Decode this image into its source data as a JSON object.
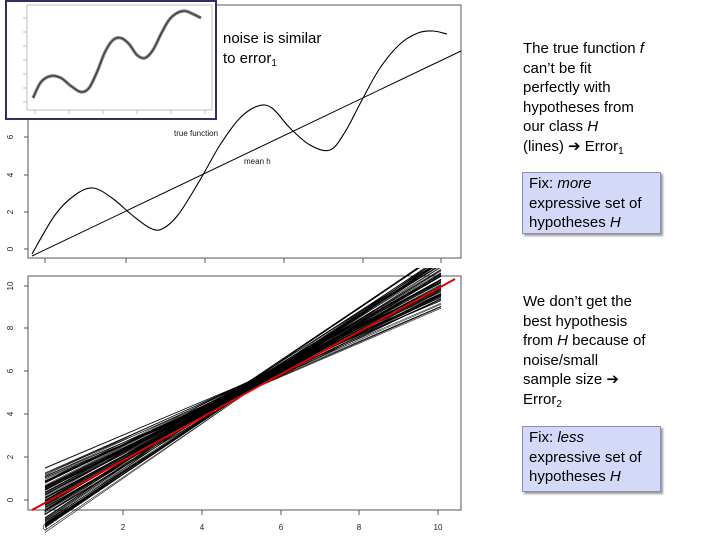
{
  "top_panel": {
    "noise_note_line1": "noise is similar",
    "noise_note_line2": "to error",
    "noise_note_sub": "1",
    "label_true_function": "true function",
    "label_mean_h": "mean h",
    "y_ticks": [
      "0",
      "2",
      "4",
      "6"
    ]
  },
  "bottom_panel": {
    "x_ticks": [
      "0",
      "2",
      "4",
      "6",
      "8",
      "10"
    ],
    "y_ticks": [
      "0",
      "2",
      "4",
      "6",
      "8",
      "10"
    ]
  },
  "right_text": {
    "para1_line1": "The true function ",
    "para1_italic_f": "f",
    "para1_line2": "can’t be fit",
    "para1_line3": "perfectly with",
    "para1_line4": "hypotheses from",
    "para1_line5": "our class ",
    "para1_italic_H": "H",
    "para1_line6": "(lines) ",
    "para1_arrow": "➔",
    "para1_error": " Error",
    "para1_error_sub": "1",
    "fix1_prefix": "Fix: ",
    "fix1_italic": "more",
    "fix1_line2": "expressive set of",
    "fix1_line3": "hypotheses ",
    "fix1_H": "H",
    "para2_line1": "We don’t get the",
    "para2_line2": "best hypothesis",
    "para2_line3_from": "from ",
    "para2_line3_H": "H",
    "para2_line3_rest": " because of",
    "para2_line4": "noise/small",
    "para2_line5": "sample size ",
    "para2_arrow": "➔",
    "para2_line6": "Error",
    "para2_error_sub": "2",
    "fix2_prefix": "Fix: ",
    "fix2_italic": "less",
    "fix2_line2": "expressive set of",
    "fix2_line3": "hypotheses ",
    "fix2_H": "H"
  }
}
